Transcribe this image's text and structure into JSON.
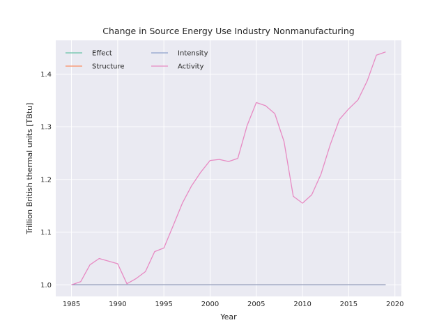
{
  "chart_data": {
    "type": "line",
    "title": "Change in Source Energy Use Industry Nonmanufacturing",
    "xlabel": "Year",
    "ylabel": "Trillion British thermal units [TBtu]",
    "xlim": [
      1983.3,
      2020.7
    ],
    "ylim": [
      0.978,
      1.464
    ],
    "xticks": [
      1985,
      1990,
      1995,
      2000,
      2005,
      2010,
      2015,
      2020
    ],
    "yticks": [
      1.0,
      1.1,
      1.2,
      1.3,
      1.4
    ],
    "grid": true,
    "legend_position": "top-left",
    "x": [
      1985,
      1986,
      1987,
      1988,
      1989,
      1990,
      1991,
      1992,
      1993,
      1994,
      1995,
      1996,
      1997,
      1998,
      1999,
      2000,
      2001,
      2002,
      2003,
      2004,
      2005,
      2006,
      2007,
      2008,
      2009,
      2010,
      2011,
      2012,
      2013,
      2014,
      2015,
      2016,
      2017,
      2018,
      2019
    ],
    "series": [
      {
        "name": "Effect",
        "color": "#66c2a5",
        "values": [
          1.0,
          1.0,
          1.0,
          1.0,
          1.0,
          1.0,
          1.0,
          1.0,
          1.0,
          1.0,
          1.0,
          1.0,
          1.0,
          1.0,
          1.0,
          1.0,
          1.0,
          1.0,
          1.0,
          1.0,
          1.0,
          1.0,
          1.0,
          1.0,
          1.0,
          1.0,
          1.0,
          1.0,
          1.0,
          1.0,
          1.0,
          1.0,
          1.0,
          1.0,
          1.0
        ]
      },
      {
        "name": "Structure",
        "color": "#fc8d62",
        "values": [
          1.0,
          1.0,
          1.0,
          1.0,
          1.0,
          1.0,
          1.0,
          1.0,
          1.0,
          1.0,
          1.0,
          1.0,
          1.0,
          1.0,
          1.0,
          1.0,
          1.0,
          1.0,
          1.0,
          1.0,
          1.0,
          1.0,
          1.0,
          1.0,
          1.0,
          1.0,
          1.0,
          1.0,
          1.0,
          1.0,
          1.0,
          1.0,
          1.0,
          1.0,
          1.0
        ]
      },
      {
        "name": "Intensity",
        "color": "#8da0cb",
        "values": [
          1.0,
          1.0,
          1.0,
          1.0,
          1.0,
          1.0,
          1.0,
          1.0,
          1.0,
          1.0,
          1.0,
          1.0,
          1.0,
          1.0,
          1.0,
          1.0,
          1.0,
          1.0,
          1.0,
          1.0,
          1.0,
          1.0,
          1.0,
          1.0,
          1.0,
          1.0,
          1.0,
          1.0,
          1.0,
          1.0,
          1.0,
          1.0,
          1.0,
          1.0,
          1.0
        ]
      },
      {
        "name": "Activity",
        "color": "#e78ac3",
        "values": [
          1.0,
          1.006,
          1.038,
          1.05,
          1.045,
          1.04,
          1.002,
          1.012,
          1.025,
          1.063,
          1.07,
          1.112,
          1.155,
          1.188,
          1.214,
          1.236,
          1.238,
          1.234,
          1.24,
          1.302,
          1.346,
          1.34,
          1.325,
          1.272,
          1.168,
          1.155,
          1.171,
          1.21,
          1.266,
          1.314,
          1.334,
          1.351,
          1.387,
          1.436,
          1.442
        ]
      }
    ]
  }
}
